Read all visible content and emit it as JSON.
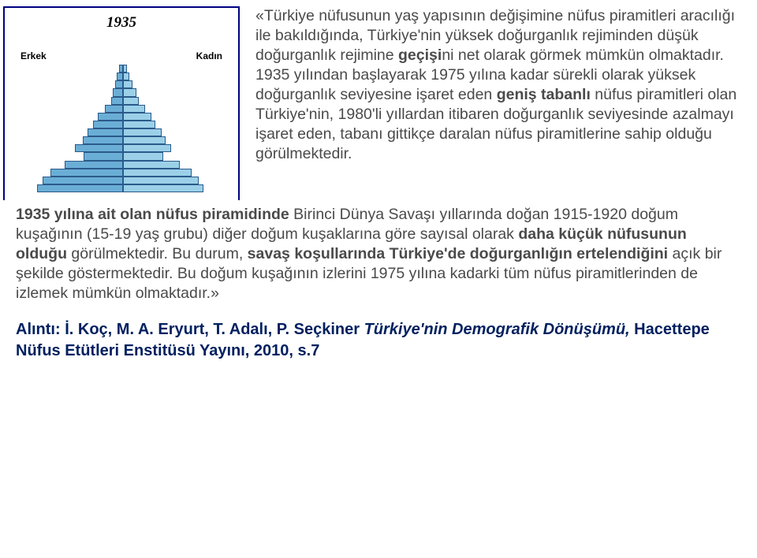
{
  "chart": {
    "type": "population-pyramid",
    "year": "1935",
    "label_male": "Erkek",
    "label_female": "Kadın",
    "border_color": "#000080",
    "male_color": "#6aaed6",
    "female_color": "#9bd0e8",
    "bar_border_color": "#2a5a8a",
    "background_color": "#ffffff",
    "x_ticks": [
      "10",
      "5",
      "0",
      "5",
      "10"
    ],
    "x_range": 10,
    "bars": [
      {
        "m": 0.4,
        "f": 0.4
      },
      {
        "m": 0.6,
        "f": 0.6
      },
      {
        "m": 0.8,
        "f": 0.9
      },
      {
        "m": 1.0,
        "f": 1.3
      },
      {
        "m": 1.2,
        "f": 1.6
      },
      {
        "m": 1.8,
        "f": 2.2
      },
      {
        "m": 2.5,
        "f": 2.8
      },
      {
        "m": 3.0,
        "f": 3.2
      },
      {
        "m": 3.5,
        "f": 3.8
      },
      {
        "m": 4.0,
        "f": 4.2
      },
      {
        "m": 4.8,
        "f": 4.8
      },
      {
        "m": 3.9,
        "f": 4.0
      },
      {
        "m": 5.8,
        "f": 5.6
      },
      {
        "m": 7.2,
        "f": 6.8
      },
      {
        "m": 8.0,
        "f": 7.5
      },
      {
        "m": 8.5,
        "f": 8.0
      }
    ]
  },
  "text": {
    "quote_open": "«",
    "p1_a": "Türkiye nüfusunun yaş yapısının değişimine nüfus piramitleri aracılığı ile bakıldığında, Türkiye'nin yüksek doğurganlık rejiminden düşük doğurganlık rejimine ",
    "p1_b": "geçişi",
    "p1_c": "ni net olarak görmek mümkün olmaktadır. 1935 yılından başlayarak 1975 yılına kadar sürekli olarak yüksek doğurganlık seviyesine işaret eden ",
    "p1_d": "geniş tabanlı",
    "p1_e": " nüfus piramitleri olan Türkiye'nin, 1980'li yıllardan itibaren doğurganlık seviyesinde azalmayı işaret eden, tabanı gittikçe daralan nüfus piramitlerine sahip olduğu görülmektedir.",
    "p2_a": "1935 yılına ait olan nüfus piramidinde ",
    "p2_b": "Birinci Dünya Savaşı yıllarında doğan 1915-1920 doğum kuşağının",
    "p2_c": " (15-19 yaş grubu) diğer doğum kuşaklarına göre sayısal olarak ",
    "p2_d": "daha küçük nüfusunun olduğu",
    "p2_e": " görülmektedir. Bu durum, ",
    "p2_f": "savaş koşullarında Türkiye'de doğurganlığın ertelendiğini",
    "p2_g": " açık bir şekilde göstermektedir. Bu doğum kuşağının izlerini 1975 yılına kadarki tüm nüfus piramitlerinden de izlemek mümkün olmaktadır.»"
  },
  "citation": {
    "label": "Alıntı: ",
    "authors": "İ. Koç, M. A. Eryurt, T. Adalı, P. Seçkiner ",
    "title": "Türkiye'nin Demografik Dönüşümü,",
    "publisher": " Hacettepe Nüfus Etütleri Enstitüsü Yayını, 2010, s.7",
    "color": "#002060"
  }
}
